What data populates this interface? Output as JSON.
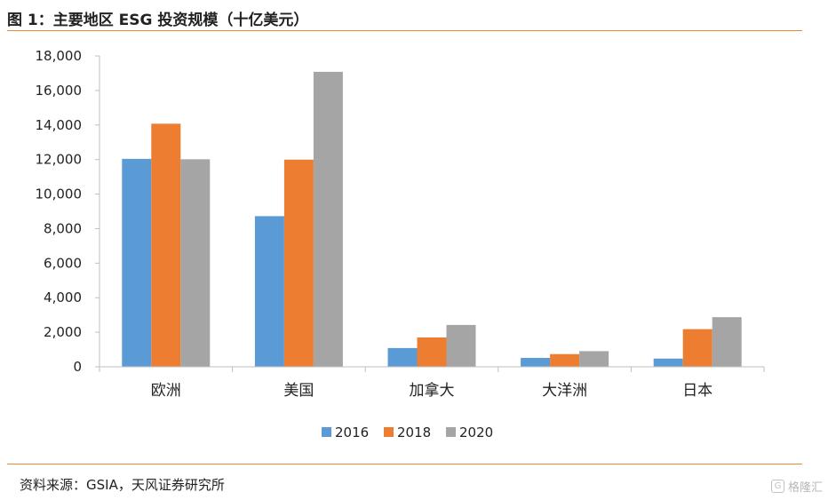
{
  "header": {
    "title": "图 1：主要地区 ESG 投资规模（十亿美元）"
  },
  "footer": {
    "source": "资料来源：GSIA，天风证券研究所",
    "watermark": "格隆汇",
    "watermark_icon": "G"
  },
  "chart_data": {
    "type": "bar",
    "title": "",
    "xlabel": "",
    "ylabel": "",
    "ylim": [
      0,
      18000
    ],
    "yticks": [
      0,
      2000,
      4000,
      6000,
      8000,
      10000,
      12000,
      14000,
      16000,
      18000
    ],
    "ytick_labels": [
      "0",
      "2,000",
      "4,000",
      "6,000",
      "8,000",
      "10,000",
      "12,000",
      "14,000",
      "16,000",
      "18,000"
    ],
    "categories": [
      "欧洲",
      "美国",
      "加拿大",
      "大洋洲",
      "日本"
    ],
    "series": [
      {
        "name": "2016",
        "color": "#5b9bd5",
        "values": [
          12040,
          8723,
          1086,
          516,
          474
        ]
      },
      {
        "name": "2018",
        "color": "#ed7d31",
        "values": [
          14075,
          11995,
          1699,
          734,
          2180
        ]
      },
      {
        "name": "2020",
        "color": "#a5a5a5",
        "values": [
          12017,
          17081,
          2423,
          906,
          2874
        ]
      }
    ],
    "grid": false,
    "legend_position": "bottom-center"
  }
}
